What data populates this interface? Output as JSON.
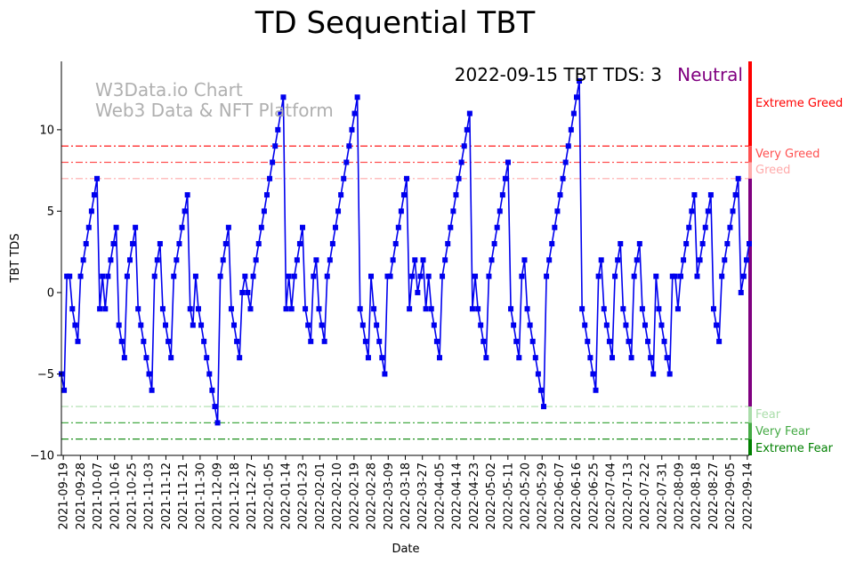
{
  "chart_data": {
    "type": "line",
    "title": "TD Sequential TBT",
    "xlabel": "Date",
    "ylabel": "TBT TDS",
    "ylim": [
      -10,
      14.2
    ],
    "yticks": [
      -10,
      -5,
      0,
      5,
      10
    ],
    "x_tick_labels": [
      "2021-09-19",
      "2021-09-28",
      "2021-10-07",
      "2021-10-16",
      "2021-10-25",
      "2021-11-03",
      "2021-11-12",
      "2021-11-21",
      "2021-11-30",
      "2021-12-09",
      "2021-12-18",
      "2021-12-27",
      "2022-01-05",
      "2022-01-14",
      "2022-01-23",
      "2022-02-01",
      "2022-02-10",
      "2022-02-19",
      "2022-02-28",
      "2022-03-09",
      "2022-03-18",
      "2022-03-27",
      "2022-04-05",
      "2022-04-14",
      "2022-04-23",
      "2022-05-02",
      "2022-05-11",
      "2022-05-20",
      "2022-05-29",
      "2022-06-07",
      "2022-06-16",
      "2022-06-25",
      "2022-07-04",
      "2022-07-13",
      "2022-07-22",
      "2022-07-31",
      "2022-08-09",
      "2022-08-18",
      "2022-08-27",
      "2022-09-05",
      "2022-09-14"
    ],
    "x_start": "2021-09-18",
    "x_end": "2022-09-15",
    "series": [
      {
        "name": "TBT TDS",
        "color": "#0000ee",
        "values": [
          -5,
          -6,
          1,
          1,
          -1,
          -2,
          -3,
          1,
          2,
          3,
          4,
          5,
          6,
          7,
          -1,
          1,
          -1,
          1,
          2,
          3,
          4,
          -2,
          -3,
          -4,
          1,
          2,
          3,
          4,
          -1,
          -2,
          -3,
          -4,
          -5,
          -6,
          1,
          2,
          3,
          -1,
          -2,
          -3,
          -4,
          1,
          2,
          3,
          4,
          5,
          6,
          -1,
          -2,
          1,
          -1,
          -2,
          -3,
          -4,
          -5,
          -6,
          -7,
          -8,
          1,
          2,
          3,
          4,
          -1,
          -2,
          -3,
          -4,
          0,
          1,
          0,
          -1,
          1,
          2,
          3,
          4,
          5,
          6,
          7,
          8,
          9,
          10,
          11,
          12,
          -1,
          1,
          -1,
          1,
          2,
          3,
          4,
          -1,
          -2,
          -3,
          1,
          2,
          -1,
          -2,
          -3,
          1,
          2,
          3,
          4,
          5,
          6,
          7,
          8,
          9,
          10,
          11,
          12,
          -1,
          -2,
          -3,
          -4,
          1,
          -1,
          -2,
          -3,
          -4,
          -5,
          1,
          1,
          2,
          3,
          4,
          5,
          6,
          7,
          -1,
          1,
          2,
          0,
          1,
          2,
          -1,
          1,
          -1,
          -2,
          -3,
          -4,
          1,
          2,
          3,
          4,
          5,
          6,
          7,
          8,
          9,
          10,
          11,
          -1,
          1,
          -1,
          -2,
          -3,
          -4,
          1,
          2,
          3,
          4,
          5,
          6,
          7,
          8,
          -1,
          -2,
          -3,
          -4,
          1,
          2,
          -1,
          -2,
          -3,
          -4,
          -5,
          -6,
          -7,
          1,
          2,
          3,
          4,
          5,
          6,
          7,
          8,
          9,
          10,
          11,
          12,
          13,
          -1,
          -2,
          -3,
          -4,
          -5,
          -6,
          1,
          2,
          -1,
          -2,
          -3,
          -4,
          1,
          2,
          3,
          -1,
          -2,
          -3,
          -4,
          1,
          2,
          3,
          -1,
          -2,
          -3,
          -4,
          -5,
          1,
          -1,
          -2,
          -3,
          -4,
          -5,
          1,
          1,
          -1,
          1,
          2,
          3,
          4,
          5,
          6,
          1,
          2,
          3,
          4,
          5,
          6,
          -1,
          -2,
          -3,
          1,
          2,
          3,
          4,
          5,
          6,
          7,
          0,
          1,
          2,
          3
        ]
      }
    ],
    "thresholds": [
      {
        "label": "Extreme Greed",
        "value": 9,
        "color": "#ff0000"
      },
      {
        "label": "Very Greed",
        "value": 8,
        "color": "#ff5050"
      },
      {
        "label": "Greed",
        "value": 7,
        "color": "#ffaaaa"
      },
      {
        "label": "Fear",
        "value": -7,
        "color": "#aaddaa"
      },
      {
        "label": "Very Fear",
        "value": -8,
        "color": "#44aa44"
      },
      {
        "label": "Extreme Fear",
        "value": -9,
        "color": "#008000"
      }
    ],
    "sidebar_segments": [
      {
        "from": 14.2,
        "to": 9,
        "color": "#ff0000"
      },
      {
        "from": 9,
        "to": 8,
        "color": "#ff5050"
      },
      {
        "from": 8,
        "to": 7,
        "color": "#ffaaaa"
      },
      {
        "from": 7,
        "to": -7,
        "color": "#800080"
      },
      {
        "from": -7,
        "to": -8,
        "color": "#aaddaa"
      },
      {
        "from": -8,
        "to": -9,
        "color": "#44aa44"
      },
      {
        "from": -9,
        "to": -10,
        "color": "#008000"
      }
    ]
  },
  "watermark": {
    "line1": "W3Data.io Chart",
    "line2": "Web3 Data & NFT Platform"
  },
  "headline": {
    "text": "2022-09-15 TBT TDS: 3",
    "status": "Neutral",
    "status_color": "#800080"
  }
}
